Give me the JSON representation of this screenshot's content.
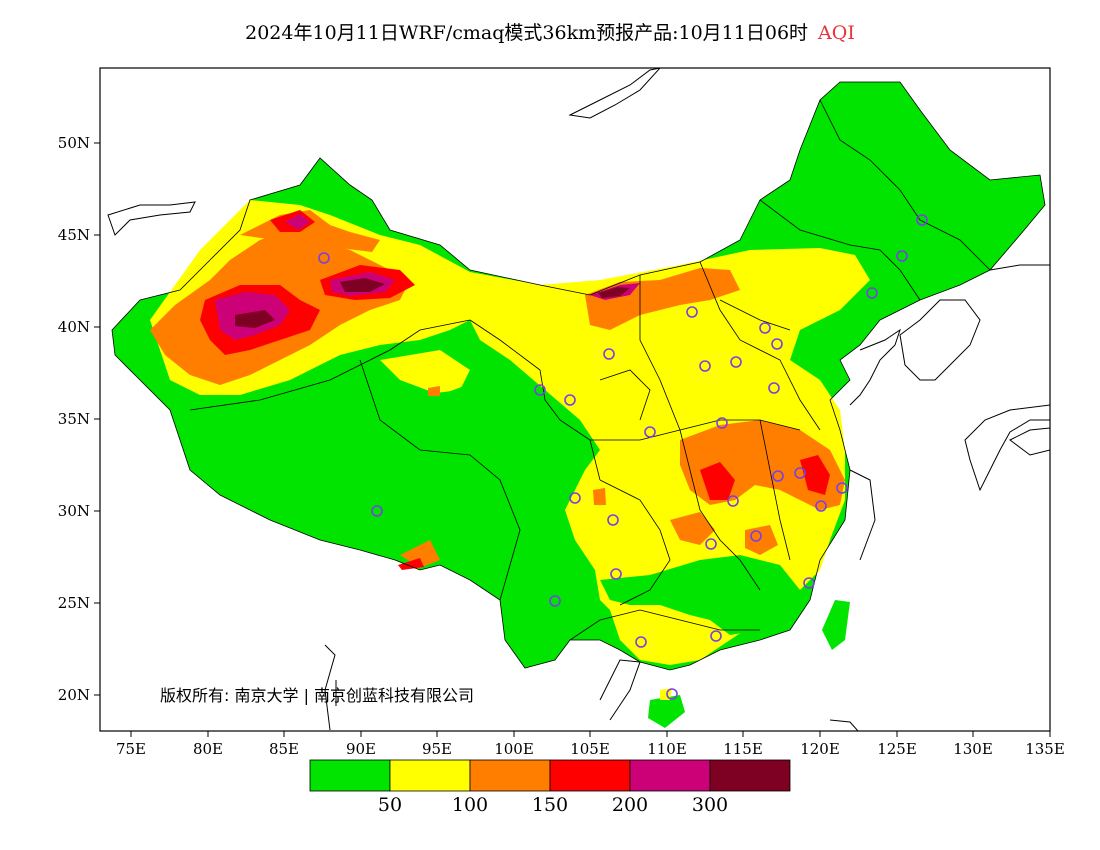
{
  "title": {
    "main": "2024年10月11日WRF/cmaq模式36km预报产品:10月11日06时",
    "product": "AQI"
  },
  "axes": {
    "lat_labels": [
      "50N",
      "45N",
      "40N",
      "35N",
      "30N",
      "25N",
      "20N"
    ],
    "lon_labels": [
      "75E",
      "80E",
      "85E",
      "90E",
      "95E",
      "100E",
      "105E",
      "110E",
      "115E",
      "120E",
      "125E",
      "130E",
      "135E"
    ]
  },
  "legend": {
    "colors": [
      "#00e400",
      "#ffff00",
      "#ff7e00",
      "#ff0000",
      "#cc0077",
      "#7e0023"
    ],
    "labels": [
      "50",
      "100",
      "150",
      "200",
      "300"
    ]
  },
  "copyright": "版权所有: 南京大学 | 南京创蓝科技有限公司",
  "station_marker_color": "#7b3fe4"
}
